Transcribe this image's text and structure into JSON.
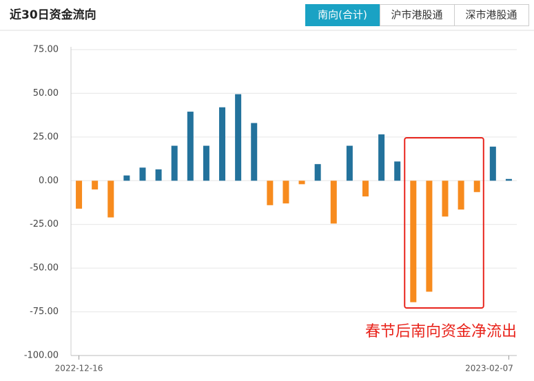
{
  "header": {
    "title": "近30日资金流向",
    "tabs": [
      "南向(合计)",
      "沪市港股通",
      "深市港股通"
    ],
    "active_tab": 0
  },
  "chart_data": {
    "type": "bar",
    "categories": [
      "2022-12-16",
      null,
      null,
      null,
      null,
      null,
      null,
      null,
      null,
      null,
      null,
      null,
      null,
      null,
      null,
      null,
      null,
      null,
      null,
      null,
      null,
      null,
      null,
      null,
      null,
      null,
      null,
      "2023-02-07"
    ],
    "values": [
      -16,
      -5,
      -21,
      3,
      7.5,
      6.5,
      20,
      39.5,
      20,
      42,
      49.5,
      33,
      -14,
      -13,
      -2,
      9.5,
      -24.5,
      20,
      -9,
      26.5,
      11,
      -69.5,
      -63.5,
      -20.5,
      -16.5,
      -6.5,
      19.5,
      1
    ],
    "positive_color": "#23729c",
    "negative_color": "#f78b1e",
    "ylim": [
      -100,
      75
    ],
    "yticks": [
      {
        "value": -100,
        "label": "-100.00"
      },
      {
        "value": -75,
        "label": "-75.00"
      },
      {
        "value": -50,
        "label": "-50.00"
      },
      {
        "value": -25,
        "label": "-25.00"
      },
      {
        "value": 0,
        "label": "0.00"
      },
      {
        "value": 25,
        "label": "25.00"
      },
      {
        "value": 50,
        "label": "50.00"
      },
      {
        "value": 75,
        "label": "75.00"
      }
    ],
    "grid": true,
    "annotation": {
      "text": "春节后南向资金净流出",
      "color": "#e8231b"
    }
  }
}
